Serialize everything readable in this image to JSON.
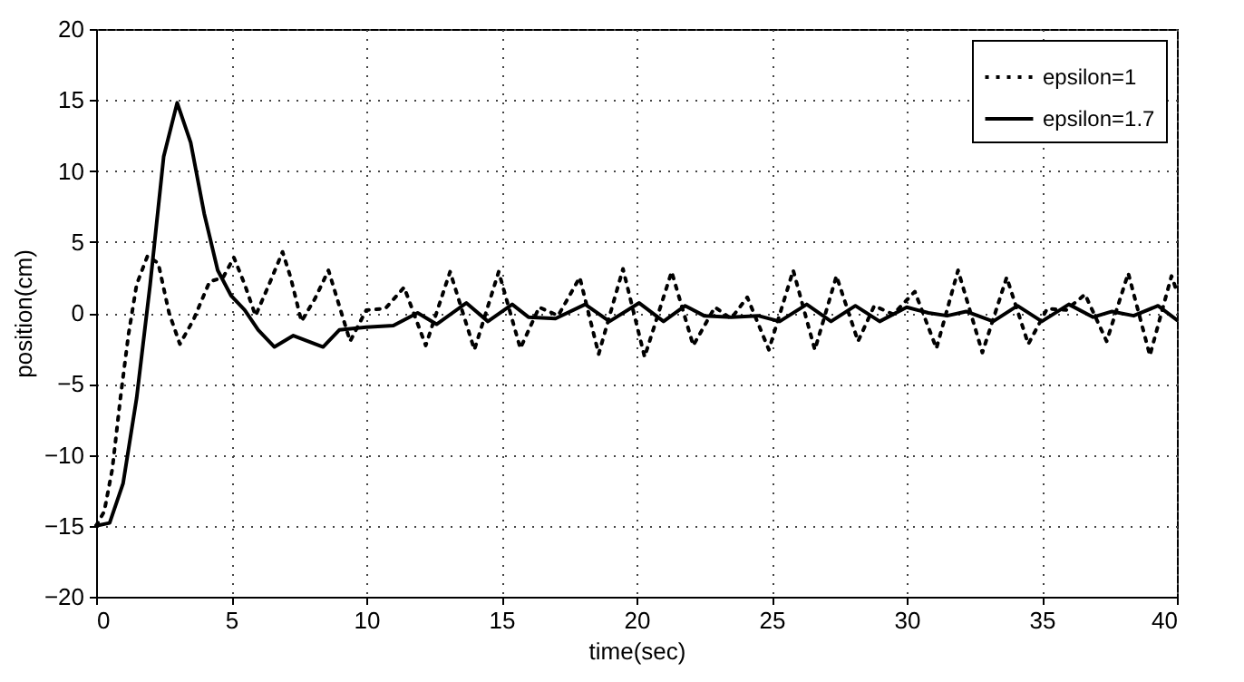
{
  "chart_data": {
    "type": "line",
    "xlabel": "time(sec)",
    "ylabel": "position(cm)",
    "xlim": [
      0,
      40
    ],
    "xticks": [
      0,
      5,
      10,
      15,
      20,
      25,
      30,
      35,
      40
    ],
    "ylim": [
      -20,
      20
    ],
    "yticks": [
      -20,
      -15,
      -10,
      -5,
      0,
      5,
      10,
      15,
      20
    ],
    "grid": true,
    "legend": "top right",
    "marker": "none",
    "series": [
      {
        "name": "epsilon=1",
        "color": "#000000",
        "line_style": "dotted",
        "x": [
          0,
          0.3,
          0.6,
          0.9,
          1.2,
          1.5,
          1.9,
          2.3,
          2.7,
          3.1,
          3.6,
          4.2,
          4.7,
          5.1,
          5.5,
          5.9,
          6.4,
          6.9,
          7.2,
          7.6,
          8.1,
          8.6,
          9,
          9.4,
          10,
          10.7,
          11.4,
          12.2,
          13.1,
          14,
          14.9,
          15.7,
          16.4,
          17.1,
          17.9,
          18.6,
          19.5,
          20.3,
          21.3,
          22.1,
          22.9,
          23.5,
          24.1,
          24.9,
          25.8,
          26.6,
          27.4,
          28.2,
          28.8,
          29.5,
          30.3,
          31.1,
          31.9,
          32.8,
          33.7,
          34.5,
          35.2,
          35.9,
          36.6,
          37.4,
          38.2,
          39,
          39.8,
          40
        ],
        "values": [
          -15,
          -14,
          -11,
          -6,
          -1.5,
          2,
          4,
          3.5,
          0,
          -2.2,
          -0.5,
          2.2,
          2.5,
          3.9,
          2,
          -0.2,
          2,
          4.3,
          2.5,
          -0.6,
          1,
          3,
          0.5,
          -2,
          0.2,
          0.3,
          1.8,
          -2.3,
          2.9,
          -2.6,
          2.9,
          -2.5,
          0.4,
          -0.2,
          2.5,
          -2.9,
          3.1,
          -3.1,
          2.9,
          -2.3,
          0.4,
          -0.4,
          1.1,
          -2.6,
          3,
          -2.6,
          2.6,
          -2,
          0.5,
          -0.1,
          1.5,
          -2.5,
          3,
          -2.8,
          2.5,
          -2.2,
          0.3,
          0.2,
          1.3,
          -2,
          2.8,
          -3,
          2.6,
          1.5
        ]
      },
      {
        "name": "epsilon=1.7",
        "color": "#000000",
        "line_style": "solid",
        "x": [
          0,
          0.5,
          1,
          1.5,
          2,
          2.5,
          3,
          3.5,
          4,
          4.5,
          5,
          5.5,
          6,
          6.6,
          7.3,
          8.4,
          9,
          10,
          11,
          11.9,
          12.6,
          13.7,
          14.5,
          15.4,
          16,
          17,
          18.1,
          19,
          20.1,
          21,
          21.8,
          22.5,
          23.5,
          24.5,
          25.3,
          26.3,
          27.2,
          28.1,
          29,
          30,
          30.8,
          31.5,
          32.2,
          33.2,
          34.1,
          35,
          36,
          36.9,
          37.6,
          38.4,
          39.3,
          40
        ],
        "values": [
          -15,
          -14.8,
          -12,
          -6,
          2,
          11,
          14.8,
          12,
          7,
          3,
          1.2,
          0.2,
          -1.2,
          -2.4,
          -1.6,
          -2.4,
          -1.2,
          -1,
          -0.9,
          0,
          -0.8,
          0.7,
          -0.6,
          0.6,
          -0.3,
          -0.4,
          0.6,
          -0.6,
          0.7,
          -0.6,
          0.5,
          -0.2,
          -0.3,
          -0.2,
          -0.6,
          0.6,
          -0.6,
          0.5,
          -0.6,
          0.4,
          0,
          -0.2,
          0.1,
          -0.6,
          0.5,
          -0.6,
          0.6,
          -0.3,
          0.1,
          -0.2,
          0.5,
          -0.5
        ]
      }
    ]
  }
}
